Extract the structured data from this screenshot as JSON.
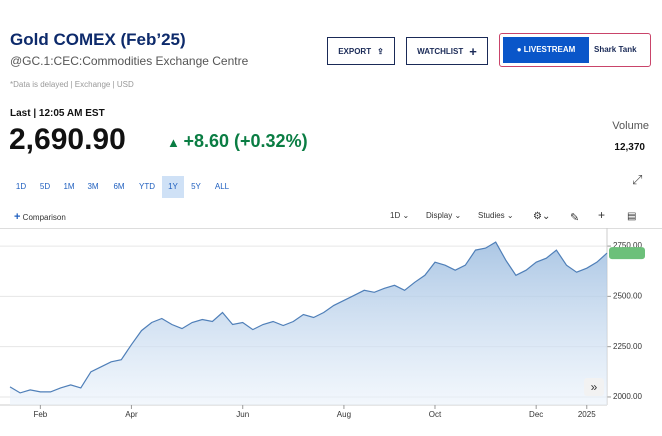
{
  "header": {
    "title": "Gold COMEX (Feb’25)",
    "symbol": "@GC.1:CEC:Commodities Exchange Centre",
    "note": "*Data is delayed | Exchange | USD"
  },
  "buttons": {
    "export": "EXPORT",
    "watchlist": "WATCHLIST",
    "livestream": "LIVESTREAM",
    "show": "Shark Tank"
  },
  "quote": {
    "time": "Last | 12:05 AM EST",
    "price": "2,690.90",
    "change": "+8.60 (+0.32%)",
    "volume_label": "Volume",
    "volume": "12,370"
  },
  "ranges": [
    "1D",
    "5D",
    "1M",
    "3M",
    "6M",
    "YTD",
    "1Y",
    "5Y",
    "ALL"
  ],
  "active_range": "1Y",
  "toolbar": {
    "comparison": "Comparison",
    "interval": "1D",
    "display": "Display",
    "studies": "Studies"
  },
  "chart_data": {
    "type": "area",
    "color": "#4f7fb8",
    "categories": [
      null,
      null,
      null,
      "Feb",
      null,
      null,
      null,
      null,
      null,
      null,
      null,
      null,
      "Apr",
      null,
      null,
      null,
      null,
      null,
      null,
      null,
      null,
      null,
      null,
      "Jun",
      null,
      null,
      null,
      null,
      null,
      null,
      null,
      null,
      null,
      "Aug",
      null,
      null,
      null,
      null,
      null,
      null,
      null,
      null,
      "Oct",
      null,
      null,
      null,
      null,
      null,
      null,
      null,
      null,
      null,
      "Dec",
      null,
      null,
      null,
      null,
      "2025",
      null,
      null
    ],
    "values": [
      2050,
      2020,
      2035,
      2025,
      2025,
      2045,
      2060,
      2045,
      2125,
      2150,
      2175,
      2185,
      2260,
      2330,
      2370,
      2390,
      2360,
      2340,
      2370,
      2385,
      2375,
      2420,
      2360,
      2370,
      2335,
      2360,
      2375,
      2355,
      2375,
      2410,
      2395,
      2420,
      2455,
      2480,
      2505,
      2530,
      2520,
      2540,
      2555,
      2530,
      2570,
      2605,
      2670,
      2655,
      2630,
      2655,
      2730,
      2740,
      2770,
      2680,
      2605,
      2630,
      2670,
      2690,
      2730,
      2655,
      2620,
      2640,
      2670,
      2715
    ],
    "ylim": [
      1960,
      2820
    ],
    "yticks": [
      {
        "value": 2000,
        "label": "2000.00"
      },
      {
        "value": 2250,
        "label": "2250.00"
      },
      {
        "value": 2500,
        "label": "2500.00"
      },
      {
        "value": 2750,
        "label": "2750.00"
      }
    ],
    "current_price": {
      "value": 2715,
      "label": "2715.00"
    },
    "grid": true
  }
}
